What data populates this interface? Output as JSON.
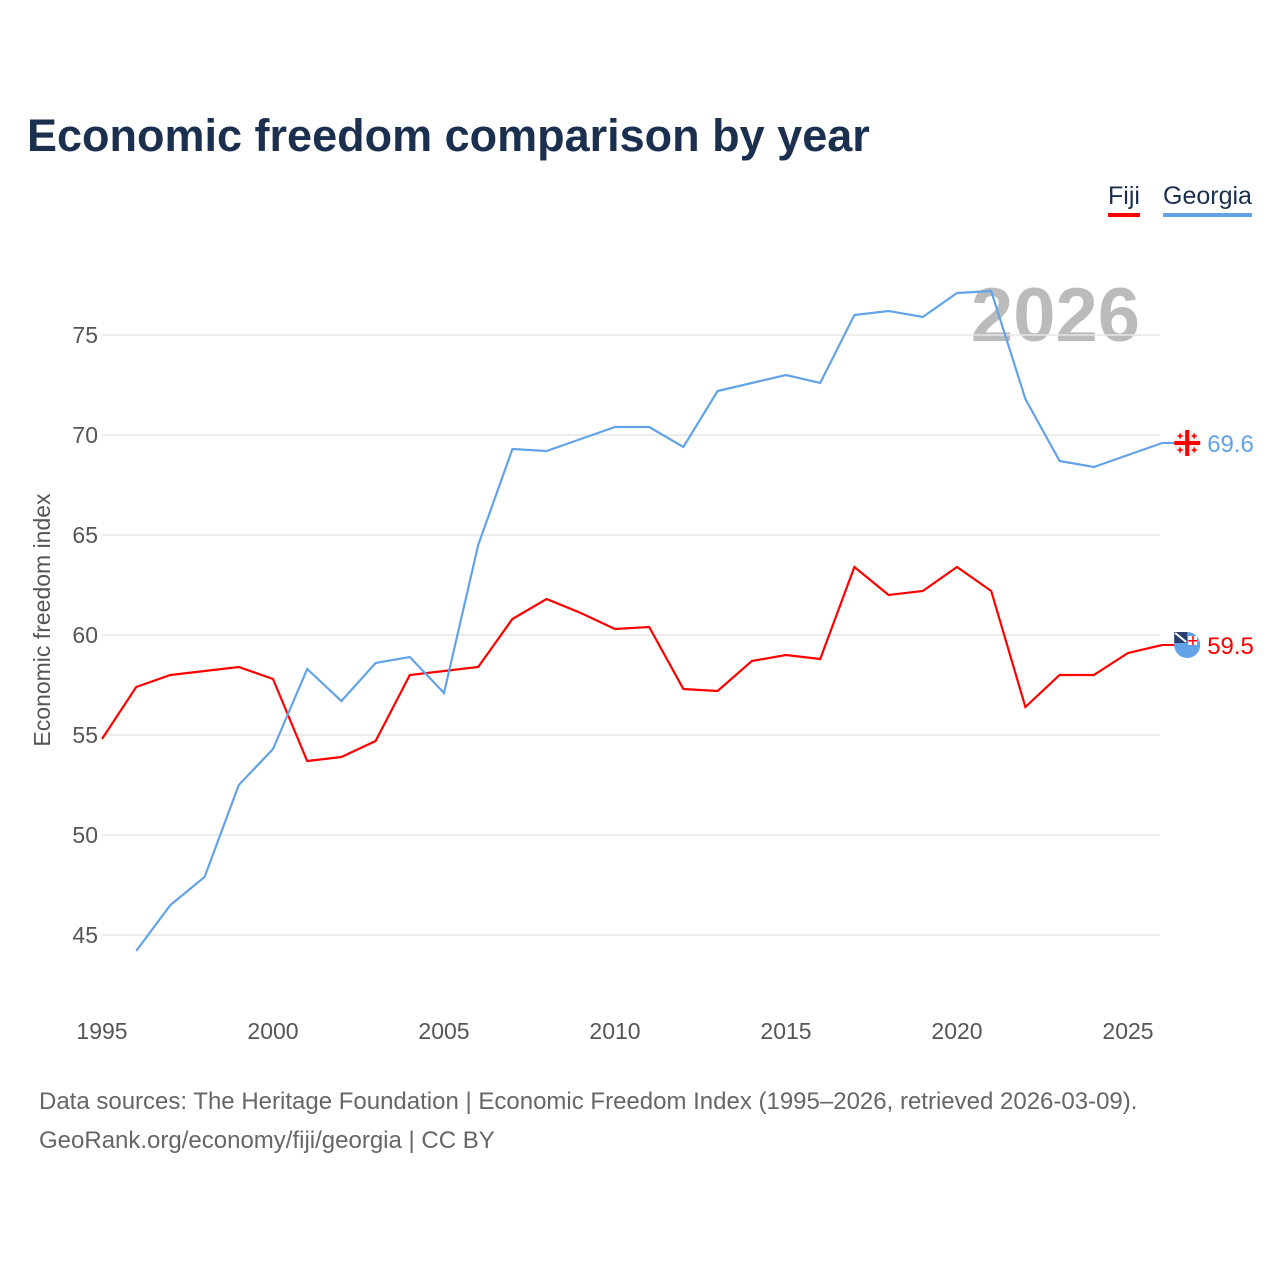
{
  "chart_data": {
    "type": "line",
    "title": "Economic freedom comparison by year",
    "xlabel": "",
    "ylabel": "Economic freedom index",
    "xlim": [
      1995,
      2026
    ],
    "ylim": [
      42,
      79
    ],
    "x_ticks": [
      1995,
      2000,
      2005,
      2010,
      2015,
      2020,
      2025
    ],
    "y_ticks": [
      45,
      50,
      55,
      60,
      65,
      70,
      75
    ],
    "grid": true,
    "legend_position": "top-right",
    "watermark_year": "2026",
    "series": [
      {
        "name": "Fiji",
        "color": "#ff0000",
        "end_label": "59.5",
        "flag_icon": "fiji-flag-icon",
        "x": [
          1995,
          1996,
          1997,
          1998,
          1999,
          2000,
          2001,
          2002,
          2003,
          2004,
          2005,
          2006,
          2007,
          2008,
          2009,
          2010,
          2011,
          2012,
          2013,
          2014,
          2015,
          2016,
          2017,
          2018,
          2019,
          2020,
          2021,
          2022,
          2023,
          2024,
          2025,
          2026
        ],
        "values": [
          54.8,
          57.4,
          58.0,
          58.2,
          58.4,
          57.8,
          53.7,
          53.9,
          54.7,
          58.0,
          58.2,
          58.4,
          60.8,
          61.8,
          61.1,
          60.3,
          60.4,
          57.3,
          57.2,
          58.7,
          59.0,
          58.8,
          63.4,
          62.0,
          62.2,
          63.4,
          62.2,
          56.4,
          58.0,
          58.0,
          59.1,
          59.5
        ]
      },
      {
        "name": "Georgia",
        "color": "#62a3e8",
        "end_label": "69.6",
        "flag_icon": "georgia-flag-icon",
        "x": [
          1996,
          1997,
          1998,
          1999,
          2000,
          2001,
          2002,
          2003,
          2004,
          2005,
          2006,
          2007,
          2008,
          2009,
          2010,
          2011,
          2012,
          2013,
          2014,
          2015,
          2016,
          2017,
          2018,
          2019,
          2020,
          2021,
          2022,
          2023,
          2024,
          2025,
          2026
        ],
        "values": [
          44.2,
          46.5,
          47.9,
          52.5,
          54.3,
          58.3,
          56.7,
          58.6,
          58.9,
          57.1,
          64.5,
          69.3,
          69.2,
          69.8,
          70.4,
          70.4,
          69.4,
          72.2,
          72.6,
          73.0,
          72.6,
          76.0,
          76.2,
          75.9,
          77.1,
          77.2,
          71.8,
          68.7,
          68.4,
          69.0,
          69.6
        ]
      }
    ]
  },
  "legend": {
    "fiji": "Fiji",
    "georgia": "Georgia"
  },
  "footer": {
    "line1": "Data sources: The Heritage Foundation | Economic Freedom Index (1995–2026, retrieved 2026-03-09).",
    "line2": "GeoRank.org/economy/fiji/georgia | CC BY"
  }
}
